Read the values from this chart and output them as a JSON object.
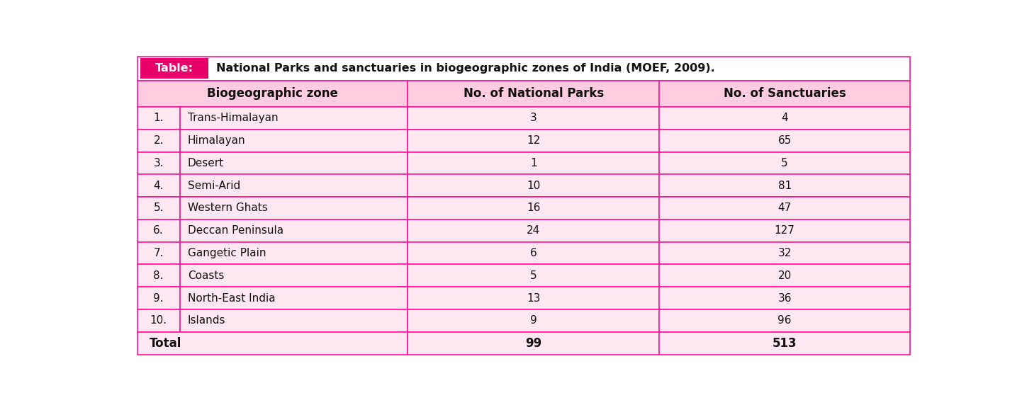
{
  "title_label": "Table:",
  "title_text": "National Parks and sanctuaries in biogeographic zones of India (MOEF, 2009).",
  "col_headers": [
    "Biogeographic zone",
    "No. of National Parks",
    "No. of Sanctuaries"
  ],
  "rows": [
    [
      "1.",
      "Trans-Himalayan",
      "3",
      "4"
    ],
    [
      "2.",
      "Himalayan",
      "12",
      "65"
    ],
    [
      "3.",
      "Desert",
      "1",
      "5"
    ],
    [
      "4.",
      "Semi-Arid",
      "10",
      "81"
    ],
    [
      "5.",
      "Western Ghats",
      "16",
      "47"
    ],
    [
      "6.",
      "Deccan Peninsula",
      "24",
      "127"
    ],
    [
      "7.",
      "Gangetic Plain",
      "6",
      "32"
    ],
    [
      "8.",
      "Coasts",
      "5",
      "20"
    ],
    [
      "9.",
      "North-East India",
      "13",
      "36"
    ],
    [
      "10.",
      "Islands",
      "9",
      "96"
    ]
  ],
  "total_row": [
    "Total",
    "99",
    "513"
  ],
  "title_bg": "#FFFFFF",
  "title_label_bg": "#E8006A",
  "header_bg": "#FFCCE0",
  "row_bg": "#FFE8F2",
  "total_bg": "#FFE8F2",
  "border_color": "#FF1493",
  "title_label_color": "#FFFFFF",
  "title_text_color": "#111111",
  "header_text_color": "#111111",
  "data_text_color": "#111111",
  "total_text_color": "#111111",
  "figsize": [
    14.42,
    5.72
  ],
  "dpi": 100
}
